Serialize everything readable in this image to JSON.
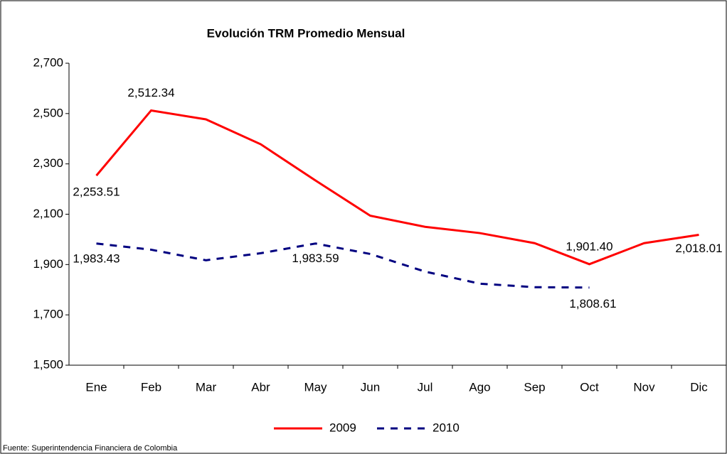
{
  "chart_data": {
    "type": "line",
    "title": "Evolución TRM Promedio Mensual",
    "categories": [
      "Ene",
      "Feb",
      "Mar",
      "Abr",
      "May",
      "Jun",
      "Jul",
      "Ago",
      "Sep",
      "Oct",
      "Nov",
      "Dic"
    ],
    "series": [
      {
        "name": "2009",
        "color": "#ff0000",
        "dash": false,
        "values": [
          2253.51,
          2512.34,
          2477,
          2378,
          2234,
          2094,
          2050,
          2025,
          1985,
          1901.4,
          1985,
          2018.01
        ],
        "value_labels": [
          "2,253.51",
          "2,512.34",
          null,
          null,
          null,
          null,
          null,
          null,
          null,
          "1,901.40",
          null,
          "2,018.01"
        ]
      },
      {
        "name": "2010",
        "color": "#000080",
        "dash": true,
        "values": [
          1983.43,
          1959,
          1917,
          1945,
          1983.59,
          1942,
          1872,
          1824,
          1810,
          1808.61,
          null,
          null
        ],
        "value_labels": [
          "1,983.43",
          null,
          null,
          null,
          "1,983.59",
          null,
          null,
          null,
          null,
          "1,808.61",
          null,
          null
        ]
      }
    ],
    "ylim": [
      1500,
      2700
    ],
    "yticks": [
      {
        "value": 1500,
        "label": "1,500"
      },
      {
        "value": 1700,
        "label": "1,700"
      },
      {
        "value": 1900,
        "label": "1,900"
      },
      {
        "value": 2100,
        "label": "2,100"
      },
      {
        "value": 2300,
        "label": "2,300"
      },
      {
        "value": 2500,
        "label": "2,500"
      },
      {
        "value": 2700,
        "label": "2,700"
      }
    ],
    "grid": false,
    "legend": "bottom",
    "source": "Fuente: Superintendencia Financiera de Colombia"
  }
}
